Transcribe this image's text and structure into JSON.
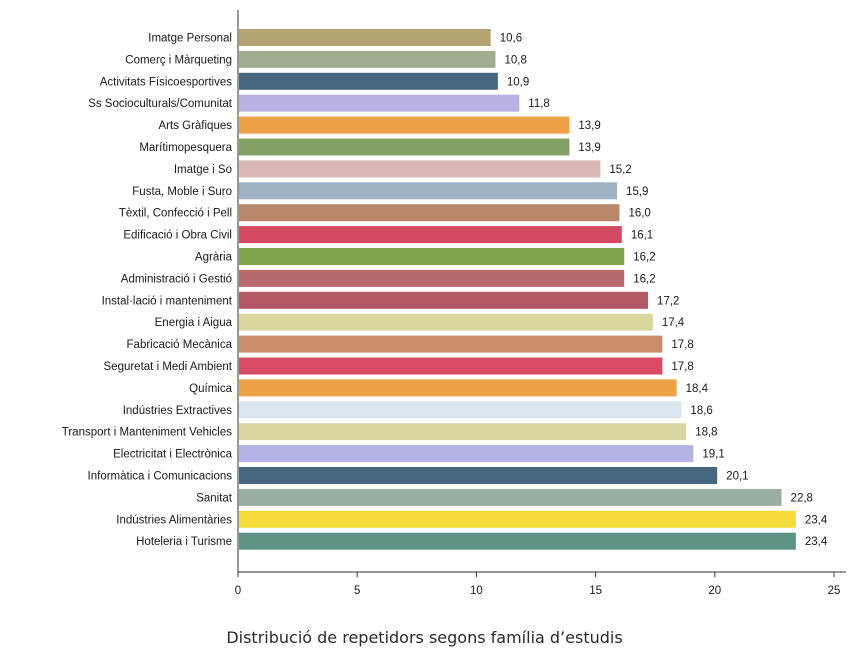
{
  "caption": "Distribució de repetidors segons família d’estudis",
  "chart_data": {
    "type": "bar",
    "orientation": "horizontal",
    "title": "",
    "xlabel": "",
    "ylabel": "",
    "xlim": [
      0,
      25
    ],
    "x_ticks": [
      "0",
      "5",
      "10",
      "15",
      "20",
      "25"
    ],
    "grid": false,
    "categories": [
      "Imatge Personal",
      "Comerç i Màrqueting",
      "Activitats Físicoesportives",
      "Ss Socioculturals/Comunitat",
      "Arts Gràfiques",
      "Marítimopesquera",
      "Imatge i So",
      "Fusta, Moble i Suro",
      "Tèxtil, Confecció i Pell",
      "Edificació i Obra Civil",
      "Agrària",
      "Administració i Gestió",
      "Instal·lació i manteniment",
      "Energia i Aigua",
      "Fabricació Mecànica",
      "Seguretat i Medi Ambient",
      "Química",
      "Indústries Extractives",
      "Transport i Manteniment Vehicles",
      "Electricitat i Electrònica",
      "Informàtica i Comunicacions",
      "Sanitat",
      "Indústries Alimentàries",
      "Hoteleria i Turisme"
    ],
    "values": [
      10.6,
      10.8,
      10.9,
      11.8,
      13.9,
      13.9,
      15.2,
      15.9,
      16.0,
      16.1,
      16.2,
      16.2,
      17.2,
      17.4,
      17.8,
      17.8,
      18.4,
      18.6,
      18.8,
      19.1,
      20.1,
      22.8,
      23.4,
      23.4
    ],
    "value_labels": [
      "10,6",
      "10,8",
      "10,9",
      "11,8",
      "13,9",
      "13,9",
      "15,2",
      "15,9",
      "16,0",
      "16,1",
      "16,2",
      "16,2",
      "17,2",
      "17,4",
      "17,8",
      "17,8",
      "18,4",
      "18,6",
      "18,8",
      "19,1",
      "20,1",
      "22,8",
      "23,4",
      "23,4"
    ],
    "colors": [
      "#b3a474",
      "#a1ad8f",
      "#46657f",
      "#b7b3e5",
      "#eda147",
      "#82a063",
      "#d9b9b6",
      "#9fb2c3",
      "#b98769",
      "#d44a63",
      "#7da44a",
      "#b76a6e",
      "#b25867",
      "#d9d69e",
      "#c98d6e",
      "#d94b65",
      "#eda147",
      "#d9e6ef",
      "#d9d5a3",
      "#b3b3e6",
      "#46657f",
      "#9aafa2",
      "#f5dc3a",
      "#5f9386"
    ]
  }
}
